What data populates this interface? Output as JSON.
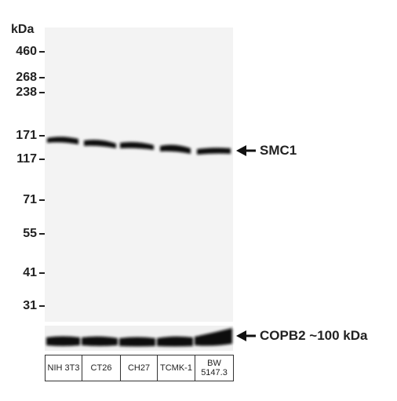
{
  "unit_label": "kDa",
  "markers": [
    "460",
    "268",
    "238",
    "171",
    "117",
    "71",
    "55",
    "41",
    "31"
  ],
  "bands": [
    "SMC1",
    "COPB2 ~100 kDa"
  ],
  "lanes": [
    "NIH 3T3",
    "CT26",
    "CH27",
    "TCMK-1",
    "BW 5147.3"
  ]
}
